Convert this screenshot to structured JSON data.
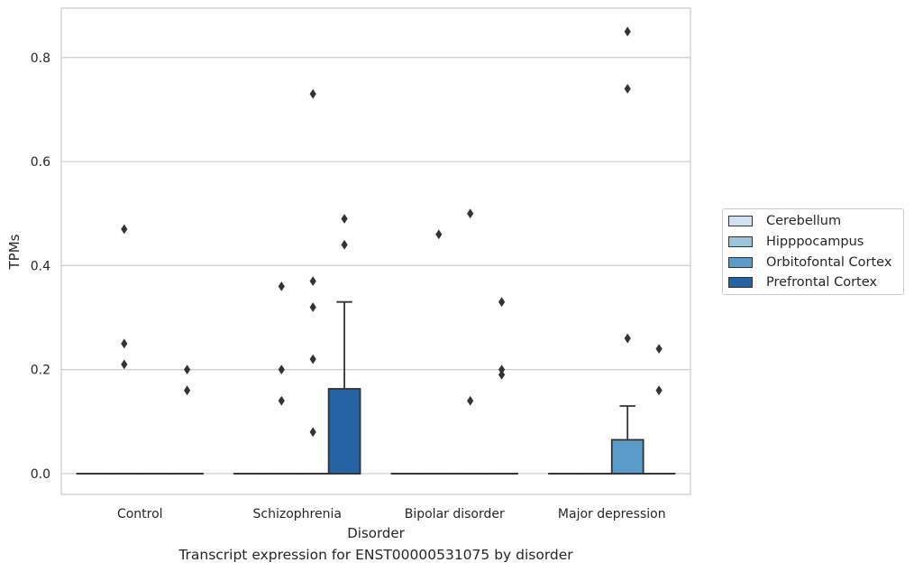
{
  "chart_data": {
    "type": "box",
    "title": "",
    "xlabel": "Disorder",
    "ylabel": "TPMs",
    "caption": "Transcript expression for ENST00000531075 by disorder",
    "categories": [
      "Control",
      "Schizophrenia",
      "Bipolar disorder",
      "Major depression"
    ],
    "ylim": [
      -0.04,
      0.895
    ],
    "yticks": [
      0.0,
      0.2,
      0.4,
      0.6,
      0.8
    ],
    "ytick_labels": [
      "0.0",
      "0.2",
      "0.4",
      "0.6",
      "0.8"
    ],
    "grid": "horizontal",
    "legend_position": "right",
    "series": [
      {
        "name": "Cerebellum",
        "color": "#d1e1f0",
        "boxes": [
          {
            "q1": 0,
            "median": 0,
            "q3": 0,
            "whislo": 0,
            "whishi": 0,
            "fliers": []
          },
          {
            "q1": 0,
            "median": 0,
            "q3": 0,
            "whislo": 0,
            "whishi": 0,
            "fliers": []
          },
          {
            "q1": 0,
            "median": 0,
            "q3": 0,
            "whislo": 0,
            "whishi": 0,
            "fliers": []
          },
          {
            "q1": 0,
            "median": 0,
            "q3": 0,
            "whislo": 0,
            "whishi": 0,
            "fliers": []
          }
        ]
      },
      {
        "name": "Hipppocampus",
        "color": "#9dc3dd",
        "boxes": [
          {
            "q1": 0,
            "median": 0,
            "q3": 0,
            "whislo": 0,
            "whishi": 0,
            "fliers": [
              0.47,
              0.25,
              0.21
            ]
          },
          {
            "q1": 0,
            "median": 0,
            "q3": 0,
            "whislo": 0,
            "whishi": 0,
            "fliers": [
              0.36,
              0.2,
              0.14
            ]
          },
          {
            "q1": 0,
            "median": 0,
            "q3": 0,
            "whislo": 0,
            "whishi": 0,
            "fliers": [
              0.46
            ]
          },
          {
            "q1": 0,
            "median": 0,
            "q3": 0,
            "whislo": 0,
            "whishi": 0,
            "fliers": []
          }
        ]
      },
      {
        "name": "Orbitofontal Cortex",
        "color": "#5a9bc9",
        "boxes": [
          {
            "q1": 0,
            "median": 0,
            "q3": 0,
            "whislo": 0,
            "whishi": 0,
            "fliers": []
          },
          {
            "q1": 0,
            "median": 0,
            "q3": 0,
            "whislo": 0,
            "whishi": 0,
            "fliers": [
              0.37,
              0.32,
              0.22,
              0.73,
              0.08
            ]
          },
          {
            "q1": 0,
            "median": 0,
            "q3": 0,
            "whislo": 0,
            "whishi": 0,
            "fliers": [
              0.5,
              0.14
            ]
          },
          {
            "q1": 0,
            "median": 0,
            "q3": 0.065,
            "whislo": 0,
            "whishi": 0.13,
            "fliers": [
              0.85,
              0.74,
              0.26
            ]
          }
        ]
      },
      {
        "name": "Prefrontal Cortex",
        "color": "#2663a4",
        "boxes": [
          {
            "q1": 0,
            "median": 0,
            "q3": 0,
            "whislo": 0,
            "whishi": 0,
            "fliers": [
              0.2,
              0.16
            ]
          },
          {
            "q1": 0,
            "median": 0,
            "q3": 0.163,
            "whislo": 0,
            "whishi": 0.33,
            "fliers": [
              0.49,
              0.44
            ]
          },
          {
            "q1": 0,
            "median": 0,
            "q3": 0,
            "whislo": 0,
            "whishi": 0,
            "fliers": [
              0.33,
              0.2,
              0.19
            ]
          },
          {
            "q1": 0,
            "median": 0,
            "q3": 0,
            "whislo": 0,
            "whishi": 0,
            "fliers": [
              0.24,
              0.16
            ]
          }
        ]
      }
    ]
  }
}
